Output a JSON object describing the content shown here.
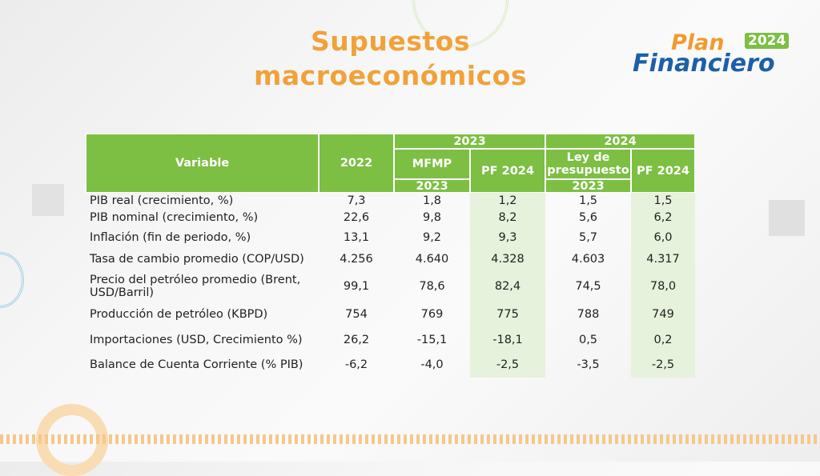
{
  "header": {
    "title_lines": [
      "Supuestos",
      "macroeconómicos"
    ],
    "logo": {
      "plan": "Plan",
      "year": "2024",
      "financiero": "Financiero"
    }
  },
  "table": {
    "header": {
      "variable": "Variable",
      "y2022": "2022",
      "y2023": "2023",
      "y2024": "2024",
      "mfmp": "MFMP",
      "mfmp_year": "2023",
      "pf2024_a": "PF 2024",
      "ley": "Ley de presupuesto",
      "ley_year": "2023",
      "pf2024_b": "PF 2024"
    },
    "rows": [
      [
        "PIB real (crecimiento, %)",
        "7,3",
        "1,8",
        "1,2",
        "1,5",
        "1,5"
      ],
      [
        "PIB nominal (crecimiento, %)",
        "22,6",
        "9,8",
        "8,2",
        "5,6",
        "6,2"
      ],
      [
        "Inflación (fin de periodo, %)",
        "13,1",
        "9,2",
        "9,3",
        "5,7",
        "6,0"
      ],
      [
        "Tasa de cambio promedio (COP/USD)",
        "4.256",
        "4.640",
        "4.328",
        "4.603",
        "4.317"
      ],
      [
        "Precio del petróleo promedio (Brent, USD/Barril)",
        "99,1",
        "78,6",
        "82,4",
        "74,5",
        "78,0"
      ],
      [
        "Producción de petróleo (KBPD)",
        "754",
        "769",
        "775",
        "788",
        "749"
      ],
      [
        "Importaciones (USD, Crecimiento %)",
        "26,2",
        "-15,1",
        "-18,1",
        "0,5",
        "0,2"
      ],
      [
        "Balance de Cuenta Corriente (% PIB)",
        "-6,2",
        "-4,0",
        "-2,5",
        "-3,5",
        "-2,5"
      ]
    ]
  }
}
